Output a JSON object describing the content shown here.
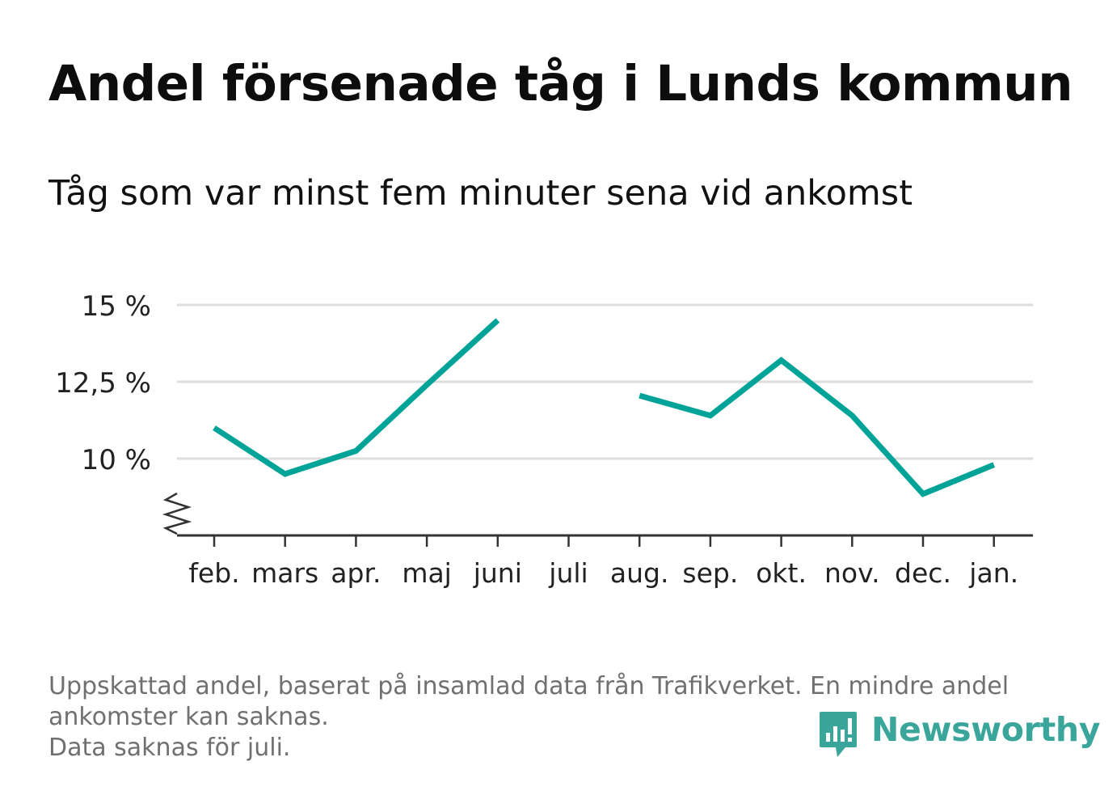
{
  "header": {
    "title": "Andel försenade tåg i Lunds kommun",
    "subtitle": "Tåg som var minst fem minuter sena vid ankomst"
  },
  "chart_data": {
    "type": "line",
    "categories": [
      "feb.",
      "mars",
      "apr.",
      "maj",
      "juni",
      "juli",
      "aug.",
      "sep.",
      "okt.",
      "nov.",
      "dec.",
      "jan."
    ],
    "series": [
      {
        "values": [
          11.0,
          9.5,
          10.25,
          12.4,
          14.5,
          null,
          12.05,
          11.4,
          13.2,
          11.4,
          8.85,
          9.8
        ]
      }
    ],
    "yticks": [
      {
        "value": 10,
        "label": "10 %"
      },
      {
        "value": 12.5,
        "label": "12,5 %"
      },
      {
        "value": 15,
        "label": "15 %"
      }
    ],
    "ylim": [
      7.5,
      15
    ],
    "y_axis_break": true,
    "grid": true,
    "colors": {
      "line": "#00a398",
      "grid": "#dddddd",
      "axis": "#333333"
    }
  },
  "footer": {
    "note_line1": "Uppskattad andel, baserat på insamlad data från Trafikverket. En mindre andel",
    "note_line2": "ankomster kan saknas.",
    "note_line3": "Data saknas för juli.",
    "brand": "Newsworthy",
    "brand_color": "#3aa59a",
    "brand_icon": "newsworthy-chart-bubble-icon"
  }
}
